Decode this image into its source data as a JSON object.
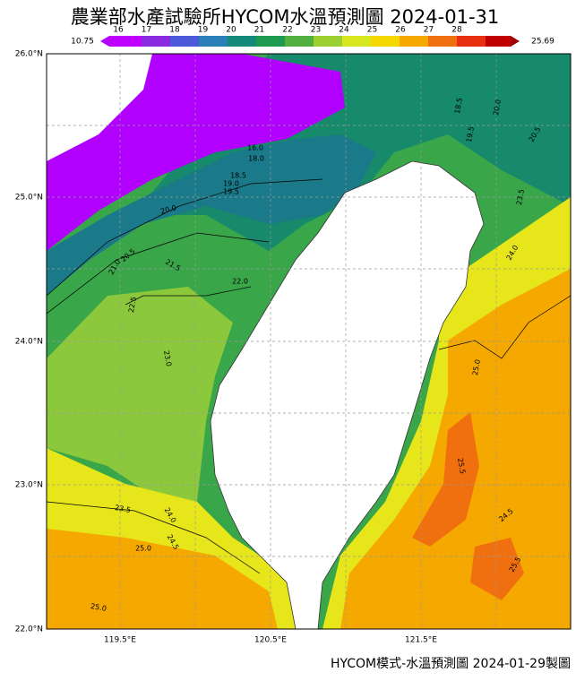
{
  "title": "農業部水產試驗所HYCOM水溫預測圖 2024-01-31",
  "colorbar": {
    "min_label": "10.75",
    "max_label": "25.69",
    "ticks": [
      "16",
      "17",
      "18",
      "19",
      "20",
      "21",
      "22",
      "23",
      "24",
      "25",
      "26",
      "27",
      "28"
    ]
  },
  "lat_labels": [
    "26.0°N",
    "25.0°N",
    "24.0°N",
    "23.0°N",
    "22.0°N"
  ],
  "lon_labels": [
    "119.5°E",
    "120.5°E",
    "121.5°E"
  ],
  "contour_labels": [
    "16.0",
    "18.0",
    "18.5",
    "19.0",
    "19.5",
    "20.0",
    "20.5",
    "21.0",
    "21.5",
    "22.0",
    "22.5",
    "23.0",
    "23.5",
    "24.0",
    "24.5",
    "25.0",
    "25.0",
    "18.5",
    "20.0",
    "19.5",
    "20.5",
    "23.5",
    "24.0",
    "25.0",
    "25.5",
    "24.5",
    "25.5"
  ],
  "footer": "HYCOM模式-水溫預測圖 2024-01-29製圖"
}
